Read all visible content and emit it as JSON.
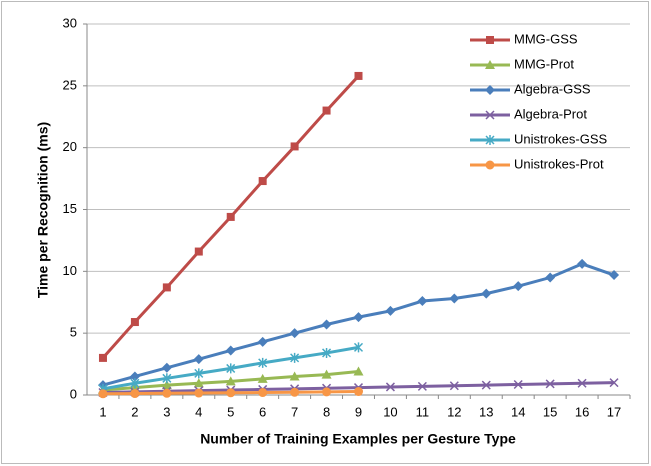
{
  "chart_data": {
    "type": "line",
    "x_label": "Number of Training Examples per Gesture Type",
    "y_label": "Time per Recognition (ms)",
    "categories": [
      1,
      2,
      3,
      4,
      5,
      6,
      7,
      8,
      9,
      10,
      11,
      12,
      13,
      14,
      15,
      16,
      17
    ],
    "ylim": [
      0,
      30
    ],
    "yticks": [
      0,
      5,
      10,
      15,
      20,
      25,
      30
    ],
    "grid": true,
    "legend": "upper right",
    "series": [
      {
        "name": "MMG-GSS",
        "color": "#be4b48",
        "marker": "square",
        "values": [
          3,
          5.9,
          8.7,
          11.6,
          14.4,
          17.3,
          20.1,
          23,
          25.8,
          null,
          null,
          null,
          null,
          null,
          null,
          null,
          null
        ]
      },
      {
        "name": "MMG-Prot",
        "color": "#98b954",
        "marker": "triangle",
        "values": [
          0.4,
          0.6,
          0.8,
          0.95,
          1.1,
          1.3,
          1.5,
          1.65,
          1.9,
          null,
          null,
          null,
          null,
          null,
          null,
          null,
          null
        ]
      },
      {
        "name": "Algebra-GSS",
        "color": "#4a7ebb",
        "marker": "diamond",
        "values": [
          0.8,
          1.5,
          2.2,
          2.9,
          3.6,
          4.3,
          5.0,
          5.7,
          6.3,
          6.8,
          7.6,
          7.8,
          8.2,
          8.8,
          9.5,
          10.6,
          9.7
        ]
      },
      {
        "name": "Algebra-Prot",
        "color": "#7d60a0",
        "marker": "x",
        "values": [
          0.2,
          0.25,
          0.3,
          0.35,
          0.4,
          0.45,
          0.5,
          0.55,
          0.6,
          0.65,
          0.7,
          0.75,
          0.8,
          0.85,
          0.9,
          0.95,
          1.0
        ]
      },
      {
        "name": "Unistrokes-GSS",
        "color": "#46aac5",
        "marker": "star",
        "values": [
          0.5,
          0.95,
          1.35,
          1.75,
          2.15,
          2.6,
          3.0,
          3.4,
          3.85,
          null,
          null,
          null,
          null,
          null,
          null,
          null,
          null
        ]
      },
      {
        "name": "Unistrokes-Prot",
        "color": "#f79646",
        "marker": "circle",
        "values": [
          0.1,
          0.12,
          0.14,
          0.16,
          0.18,
          0.2,
          0.22,
          0.25,
          0.28,
          null,
          null,
          null,
          null,
          null,
          null,
          null,
          null
        ]
      }
    ]
  }
}
